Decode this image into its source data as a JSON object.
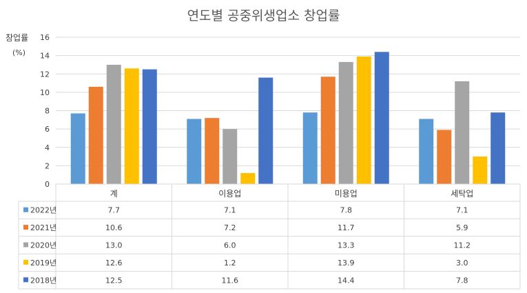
{
  "colors": {
    "2022년": "#5B9BD5",
    "2021년": "#ED7D31",
    "2020년": "#A5A5A5",
    "2019년": "#FFC000",
    "2018년": "#4472C4"
  },
  "chart_data": {
    "type": "bar",
    "title": "연도별 공중위생업소 창업률",
    "ylabel": "창업률",
    "yunit": "(%)",
    "ylim": [
      0,
      16
    ],
    "yticks": [
      "0",
      "2",
      "4",
      "6",
      "8",
      "10",
      "12",
      "14",
      "16"
    ],
    "grid": true,
    "legend": "data-table-left",
    "categories": [
      "계",
      "이용업",
      "미용업",
      "세탁업"
    ],
    "series": [
      {
        "name": "2022년",
        "values": [
          7.7,
          7.1,
          7.8,
          7.1
        ],
        "labels": [
          "7.7",
          "7.1",
          "7.8",
          "7.1"
        ]
      },
      {
        "name": "2021년",
        "values": [
          10.6,
          7.2,
          11.7,
          5.9
        ],
        "labels": [
          "10.6",
          "7.2",
          "11.7",
          "5.9"
        ]
      },
      {
        "name": "2020년",
        "values": [
          13.0,
          6.0,
          13.3,
          11.2
        ],
        "labels": [
          "13.0",
          "6.0",
          "13.3",
          "11.2"
        ]
      },
      {
        "name": "2019년",
        "values": [
          12.6,
          1.2,
          13.9,
          3.0
        ],
        "labels": [
          "12.6",
          "1.2",
          "13.9",
          "3.0"
        ]
      },
      {
        "name": "2018년",
        "values": [
          12.5,
          11.6,
          14.4,
          7.8
        ],
        "labels": [
          "12.5",
          "11.6",
          "14.4",
          "7.8"
        ]
      }
    ]
  }
}
